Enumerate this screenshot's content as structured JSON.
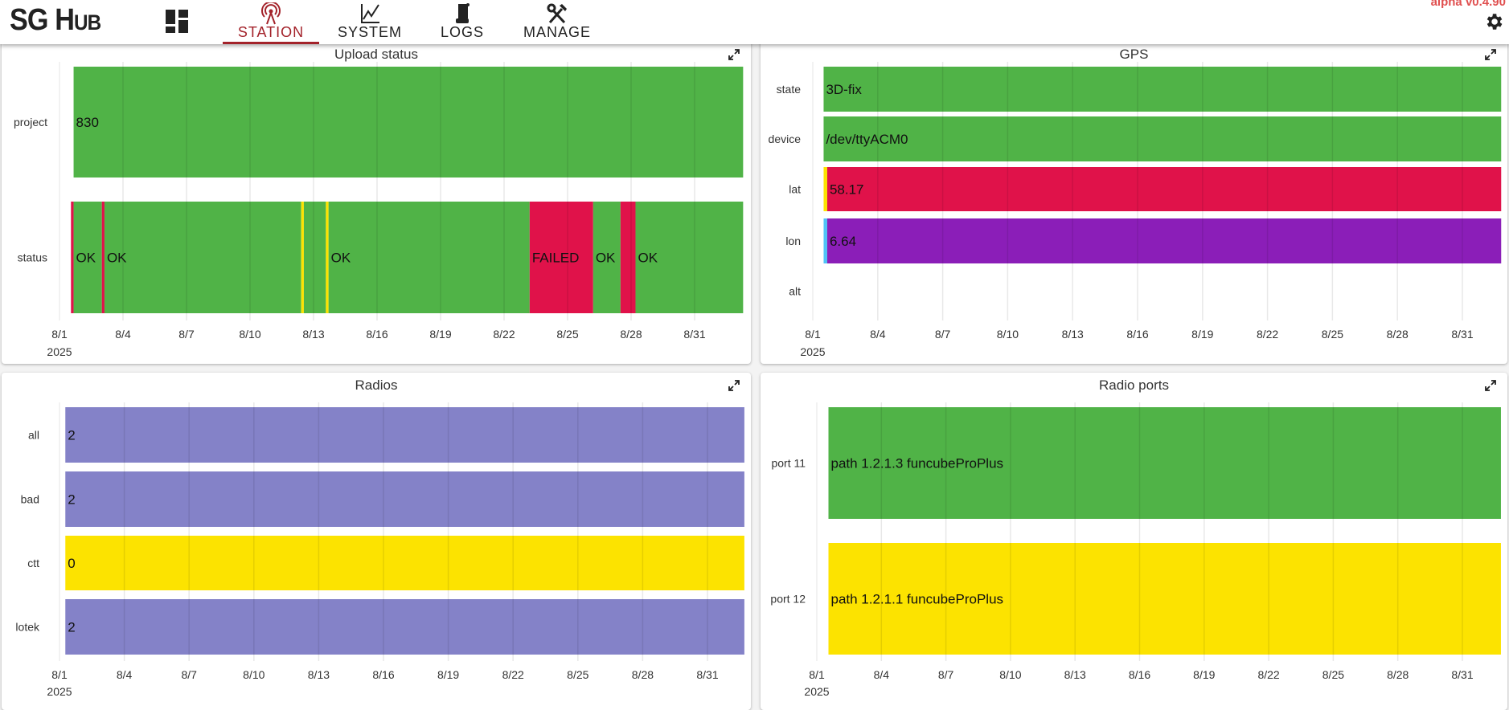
{
  "header": {
    "logo": "SG Hub",
    "version": "alpha v0.4.90",
    "tabs": [
      {
        "label": "STATION",
        "icon": "radio-tower-icon",
        "active": true
      },
      {
        "label": "SYSTEM",
        "icon": "line-chart-icon",
        "active": false
      },
      {
        "label": "LOGS",
        "icon": "scroll-icon",
        "active": false
      },
      {
        "label": "MANAGE",
        "icon": "tools-icon",
        "active": false
      }
    ]
  },
  "colors": {
    "accent": "#a3222a",
    "green": "#50b347",
    "red": "#e0124a",
    "yellow": "#fce300",
    "purple": "#8b1eb8",
    "lavender": "#8482c8",
    "cyan": "#4fc3f7"
  },
  "axis": {
    "ticks": [
      "8/1",
      "8/4",
      "8/7",
      "8/10",
      "8/13",
      "8/16",
      "8/19",
      "8/22",
      "8/25",
      "8/28",
      "8/31"
    ],
    "tick_dates": [
      "2025-08-01",
      "2025-08-04",
      "2025-08-07",
      "2025-08-10",
      "2025-08-13",
      "2025-08-16",
      "2025-08-19",
      "2025-08-22",
      "2025-08-25",
      "2025-08-28",
      "2025-08-31"
    ],
    "year": "2025"
  },
  "chart_data": [
    {
      "type": "timeline",
      "title": "Upload status",
      "rows": [
        {
          "label": "project",
          "segments": [
            {
              "start": "2025-08-01T16:00",
              "end": "2025-09-02T07:00",
              "color": "#50b347",
              "text": "830"
            }
          ]
        },
        {
          "label": "status",
          "segments": [
            {
              "start": "2025-08-01T13:00",
              "end": "2025-08-01T16:00",
              "color": "#e0124a",
              "text": ""
            },
            {
              "start": "2025-08-01T16:00",
              "end": "2025-08-03T00:00",
              "color": "#50b347",
              "text": "OK"
            },
            {
              "start": "2025-08-03T00:00",
              "end": "2025-08-03T03:00",
              "color": "#e0124a",
              "text": ""
            },
            {
              "start": "2025-08-03T03:00",
              "end": "2025-08-12T10:00",
              "color": "#50b347",
              "text": "OK"
            },
            {
              "start": "2025-08-12T10:00",
              "end": "2025-08-12T13:00",
              "color": "#fce300",
              "text": ""
            },
            {
              "start": "2025-08-12T13:00",
              "end": "2025-08-13T14:00",
              "color": "#50b347",
              "text": ""
            },
            {
              "start": "2025-08-13T14:00",
              "end": "2025-08-13T17:00",
              "color": "#fce300",
              "text": ""
            },
            {
              "start": "2025-08-13T17:00",
              "end": "2025-08-23T05:00",
              "color": "#50b347",
              "text": "OK"
            },
            {
              "start": "2025-08-23T05:00",
              "end": "2025-08-26T05:00",
              "color": "#e0124a",
              "text": "FAILED"
            },
            {
              "start": "2025-08-26T05:00",
              "end": "2025-08-27T12:00",
              "color": "#50b347",
              "text": "OK"
            },
            {
              "start": "2025-08-27T12:00",
              "end": "2025-08-28T05:00",
              "color": "#e0124a",
              "text": ""
            },
            {
              "start": "2025-08-28T05:00",
              "end": "2025-09-02T07:00",
              "color": "#50b347",
              "text": "OK"
            }
          ]
        }
      ]
    },
    {
      "type": "timeline",
      "title": "GPS",
      "rows": [
        {
          "label": "state",
          "segments": [
            {
              "start": "2025-08-01T12:00",
              "end": "2025-09-01T19:00",
              "color": "#50b347",
              "text": "3D-fix"
            }
          ]
        },
        {
          "label": "device",
          "segments": [
            {
              "start": "2025-08-01T12:00",
              "end": "2025-09-01T19:00",
              "color": "#50b347",
              "text": "/dev/ttyACM0"
            }
          ]
        },
        {
          "label": "lat",
          "segments": [
            {
              "start": "2025-08-01T12:00",
              "end": "2025-08-01T16:00",
              "color": "#fce300",
              "text": ""
            },
            {
              "start": "2025-08-01T16:00",
              "end": "2025-09-01T19:00",
              "color": "#e0124a",
              "text": "58.17"
            }
          ]
        },
        {
          "label": "lon",
          "segments": [
            {
              "start": "2025-08-01T12:00",
              "end": "2025-08-01T16:00",
              "color": "#4fc3f7",
              "text": ""
            },
            {
              "start": "2025-08-01T16:00",
              "end": "2025-09-01T19:00",
              "color": "#8b1eb8",
              "text": "6.64"
            }
          ]
        },
        {
          "label": "alt",
          "segments": []
        }
      ]
    },
    {
      "type": "timeline",
      "title": "Radios",
      "rows": [
        {
          "label": "all",
          "segments": [
            {
              "start": "2025-08-01T06:30",
              "end": "2025-09-01T17:00",
              "color": "#8482c8",
              "text": "2"
            }
          ]
        },
        {
          "label": "bad",
          "segments": [
            {
              "start": "2025-08-01T06:30",
              "end": "2025-09-01T17:00",
              "color": "#8482c8",
              "text": "2"
            }
          ]
        },
        {
          "label": "ctt",
          "segments": [
            {
              "start": "2025-08-01T06:30",
              "end": "2025-09-01T17:00",
              "color": "#fce300",
              "text": "0"
            }
          ]
        },
        {
          "label": "lotek",
          "segments": [
            {
              "start": "2025-08-01T06:30",
              "end": "2025-09-01T17:00",
              "color": "#8482c8",
              "text": "2"
            }
          ]
        }
      ]
    },
    {
      "type": "timeline",
      "title": "Radio ports",
      "rows": [
        {
          "label": "port 11",
          "segments": [
            {
              "start": "2025-08-01T13:00",
              "end": "2025-09-01T19:00",
              "color": "#50b347",
              "text": "path 1.2.1.3 funcubeProPlus"
            }
          ]
        },
        {
          "label": "port 12",
          "segments": [
            {
              "start": "2025-08-01T13:00",
              "end": "2025-09-01T19:00",
              "color": "#fce300",
              "text": "path 1.2.1.1 funcubeProPlus"
            }
          ]
        }
      ]
    }
  ]
}
